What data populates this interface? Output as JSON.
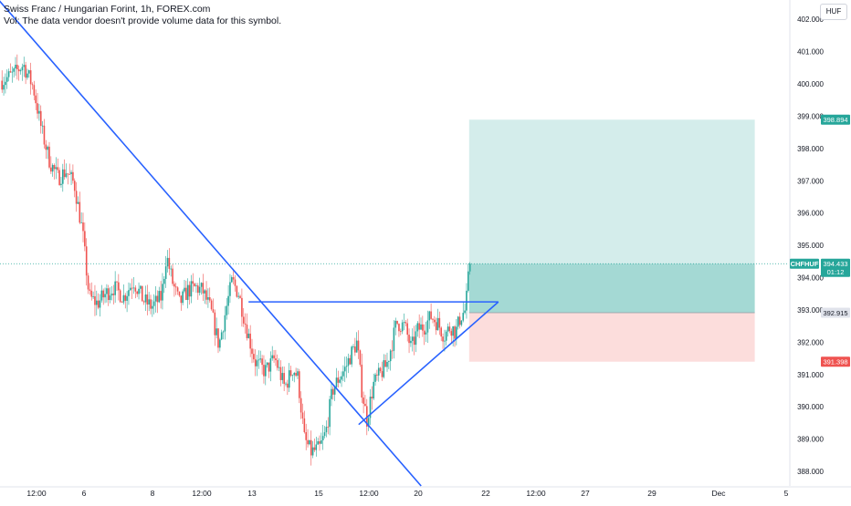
{
  "header": {
    "title": "Swiss Franc / Hungarian Forint, 1h, FOREX.com",
    "volume_note": "Vol: The data vendor doesn't provide volume data for this symbol.",
    "currency": "HUF"
  },
  "colors": {
    "up": "#26a69a",
    "down": "#ef5350",
    "trendline": "#2962ff",
    "profit_zone": "#26a69a",
    "loss_zone": "#ef5350",
    "neutral_label": "#e0e3eb"
  },
  "chart_data": {
    "type": "candlestick",
    "symbol": "CHFHUF",
    "timeframe": "1h",
    "x_ticks": [
      "12:00",
      "6",
      "8",
      "12:00",
      "13",
      "15",
      "12:00",
      "20",
      "22",
      "12:00",
      "27",
      "29",
      "Dec",
      "5"
    ],
    "y_ticks": [
      "388.000",
      "389.000",
      "390.000",
      "391.000",
      "392.000",
      "393.000",
      "394.000",
      "395.000",
      "396.000",
      "397.000",
      "398.000",
      "399.000",
      "400.000",
      "401.000",
      "402.000"
    ],
    "ylim": [
      387.55,
      402.6
    ],
    "price_path": [
      [
        0,
        400.1
      ],
      [
        0.7,
        400.3
      ],
      [
        1.3,
        400.6
      ],
      [
        1.9,
        399.9
      ],
      [
        2.4,
        398.6
      ],
      [
        2.9,
        397.6
      ],
      [
        3.4,
        397.1
      ],
      [
        3.9,
        397.3
      ],
      [
        4.4,
        396.9
      ],
      [
        4.9,
        395.4
      ],
      [
        5.3,
        393.4
      ],
      [
        5.8,
        393.2
      ],
      [
        6.3,
        393.5
      ],
      [
        6.8,
        393.7
      ],
      [
        7.4,
        393.4
      ],
      [
        8.0,
        393.9
      ],
      [
        8.6,
        393.3
      ],
      [
        9.1,
        393.1
      ],
      [
        9.7,
        393.4
      ],
      [
        10.0,
        394.7
      ],
      [
        10.4,
        393.8
      ],
      [
        10.8,
        393.2
      ],
      [
        11.3,
        393.6
      ],
      [
        11.8,
        393.7
      ],
      [
        12.2,
        393.6
      ],
      [
        12.7,
        393.0
      ],
      [
        13.2,
        391.9
      ],
      [
        13.7,
        393.2
      ],
      [
        14.0,
        393.9
      ],
      [
        14.4,
        393.5
      ],
      [
        14.8,
        392.6
      ],
      [
        15.4,
        391.4
      ],
      [
        16.0,
        391.1
      ],
      [
        16.6,
        391.5
      ],
      [
        17.2,
        390.6
      ],
      [
        17.7,
        391.2
      ],
      [
        18.0,
        390.9
      ],
      [
        18.4,
        389.0
      ],
      [
        18.8,
        388.6
      ],
      [
        19.3,
        388.7
      ],
      [
        19.7,
        389.2
      ],
      [
        20.1,
        390.5
      ],
      [
        20.5,
        390.9
      ],
      [
        20.9,
        391.2
      ],
      [
        21.2,
        391.6
      ],
      [
        21.6,
        392.0
      ],
      [
        21.9,
        390.5
      ],
      [
        22.2,
        389.6
      ],
      [
        22.6,
        390.7
      ],
      [
        23.0,
        391.0
      ],
      [
        23.4,
        391.3
      ],
      [
        23.7,
        391.9
      ],
      [
        24.0,
        392.6
      ],
      [
        24.5,
        392.5
      ],
      [
        24.9,
        391.8
      ],
      [
        25.3,
        392.4
      ],
      [
        25.7,
        392.5
      ],
      [
        26.1,
        392.8
      ],
      [
        26.5,
        392.6
      ],
      [
        26.9,
        392.2
      ],
      [
        27.3,
        392.5
      ],
      [
        27.6,
        392.3
      ],
      [
        27.9,
        392.8
      ],
      [
        28.2,
        393.0
      ],
      [
        28.45,
        394.43
      ]
    ],
    "trendlines": [
      {
        "from": [
          -0.2,
          402.6
        ],
        "to": [
          25.5,
          387.55
        ]
      },
      {
        "from": [
          15.0,
          393.25
        ],
        "to": [
          30.2,
          393.25
        ]
      },
      {
        "from": [
          21.7,
          389.45
        ],
        "to": [
          30.2,
          393.25
        ]
      }
    ],
    "long_position": {
      "start_x": 28.45,
      "end_x": 45.8,
      "entry": 392.915,
      "target": 398.894,
      "stop": 391.398,
      "current": 394.433
    },
    "price_labels": [
      {
        "text": "398.894",
        "value": 398.894,
        "style": "profit"
      },
      {
        "text": "CHFHUF",
        "value": 394.433,
        "style": "symbol"
      },
      {
        "text": "394.433",
        "value": 394.433,
        "style": "current"
      },
      {
        "text": "01:12",
        "value": 394.1,
        "style": "current"
      },
      {
        "text": "392.915",
        "value": 392.915,
        "style": "entry"
      },
      {
        "text": "391.398",
        "value": 391.398,
        "style": "stop"
      }
    ],
    "grid": false,
    "legend": "top-left"
  }
}
